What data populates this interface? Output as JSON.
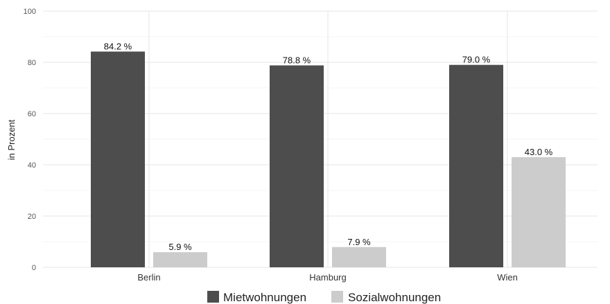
{
  "chart_data": {
    "type": "bar",
    "categories": [
      "Berlin",
      "Hamburg",
      "Wien"
    ],
    "series": [
      {
        "name": "Mietwohnungen",
        "values": [
          84.2,
          78.8,
          79.0
        ],
        "labels": [
          "84.2 %",
          "78.8 %",
          "79.0 %"
        ],
        "color": "#4d4d4d"
      },
      {
        "name": "Sozialwohnungen",
        "values": [
          5.9,
          7.9,
          43.0
        ],
        "labels": [
          "5.9 %",
          "7.9 %",
          "43.0 %"
        ],
        "color": "#cccccc"
      }
    ],
    "ylabel": "in Prozent",
    "xlabel": "",
    "ylim": [
      0,
      100
    ],
    "yticks": [
      "0",
      "20",
      "40",
      "60",
      "80",
      "100"
    ],
    "grid": true,
    "legend_position": "bottom"
  }
}
